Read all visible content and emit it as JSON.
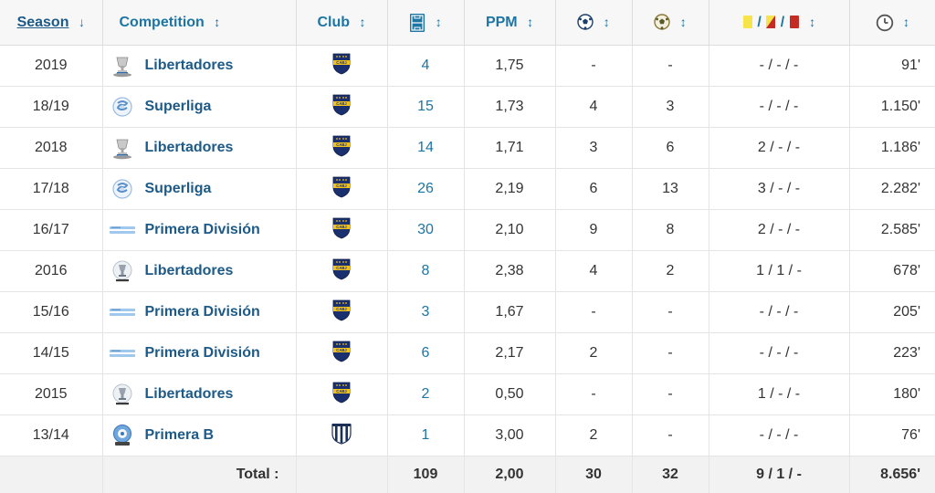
{
  "header": {
    "season": "Season",
    "season_sort": "↓",
    "competition": "Competition",
    "club": "Club",
    "ppm": "PPM",
    "cards_sep1": "/",
    "cards_sep2": "/",
    "sort": "↕",
    "icons": {
      "appearances": "pitch-icon",
      "goals": "ball-icon",
      "assists": "assist-ball-icon",
      "yellow": "yellow-card-icon",
      "second_yellow": "second-yellow-card-icon",
      "red": "red-card-icon",
      "minutes": "clock-icon"
    }
  },
  "rows": [
    {
      "season": "2019",
      "comp_icon": "libertadores-trophy",
      "competition": "Libertadores",
      "club_icon": "boca-crest",
      "apps": "4",
      "ppm": "1,75",
      "goals": "-",
      "assists": "-",
      "cards": "- / - / -",
      "minutes": "91'"
    },
    {
      "season": "18/19",
      "comp_icon": "superliga-logo",
      "competition": "Superliga",
      "club_icon": "boca-crest",
      "apps": "15",
      "ppm": "1,73",
      "goals": "4",
      "assists": "3",
      "cards": "- / - / -",
      "minutes": "1.150'"
    },
    {
      "season": "2018",
      "comp_icon": "libertadores-trophy",
      "competition": "Libertadores",
      "club_icon": "boca-crest",
      "apps": "14",
      "ppm": "1,71",
      "goals": "3",
      "assists": "6",
      "cards": "2 / - / -",
      "minutes": "1.186'"
    },
    {
      "season": "17/18",
      "comp_icon": "superliga-logo",
      "competition": "Superliga",
      "club_icon": "boca-crest",
      "apps": "26",
      "ppm": "2,19",
      "goals": "6",
      "assists": "13",
      "cards": "3 / - / -",
      "minutes": "2.282'"
    },
    {
      "season": "16/17",
      "comp_icon": "primera-division-logo",
      "competition": "Primera División",
      "club_icon": "boca-crest",
      "apps": "30",
      "ppm": "2,10",
      "goals": "9",
      "assists": "8",
      "cards": "2 / - / -",
      "minutes": "2.585'"
    },
    {
      "season": "2016",
      "comp_icon": "libertadores-logo",
      "competition": "Libertadores",
      "club_icon": "boca-crest",
      "apps": "8",
      "ppm": "2,38",
      "goals": "4",
      "assists": "2",
      "cards": "1 / 1 / -",
      "minutes": "678'"
    },
    {
      "season": "15/16",
      "comp_icon": "primera-division-logo",
      "competition": "Primera División",
      "club_icon": "boca-crest",
      "apps": "3",
      "ppm": "1,67",
      "goals": "-",
      "assists": "-",
      "cards": "- / - / -",
      "minutes": "205'"
    },
    {
      "season": "14/15",
      "comp_icon": "primera-division-logo",
      "competition": "Primera División",
      "club_icon": "boca-crest",
      "apps": "6",
      "ppm": "2,17",
      "goals": "2",
      "assists": "-",
      "cards": "- / - / -",
      "minutes": "223'"
    },
    {
      "season": "2015",
      "comp_icon": "libertadores-logo",
      "competition": "Libertadores",
      "club_icon": "boca-crest",
      "apps": "2",
      "ppm": "0,50",
      "goals": "-",
      "assists": "-",
      "cards": "1 / - / -",
      "minutes": "180'"
    },
    {
      "season": "13/14",
      "comp_icon": "primera-b-logo",
      "competition": "Primera B",
      "club_icon": "talleres-crest",
      "apps": "1",
      "ppm": "3,00",
      "goals": "2",
      "assists": "-",
      "cards": "- / - / -",
      "minutes": "76'"
    }
  ],
  "totals": {
    "label": "Total :",
    "apps": "109",
    "ppm": "2,00",
    "goals": "30",
    "assists": "32",
    "cards": "9 / 1 / -",
    "minutes": "8.656'"
  },
  "colors": {
    "link": "#1d5a87",
    "header_bg": "#f7f7f7",
    "border": "#dddddd",
    "boca_blue": "#1a2f6e",
    "boca_gold": "#f2c21a",
    "yellow_card": "#f7e34a",
    "red_card": "#c42b23"
  }
}
